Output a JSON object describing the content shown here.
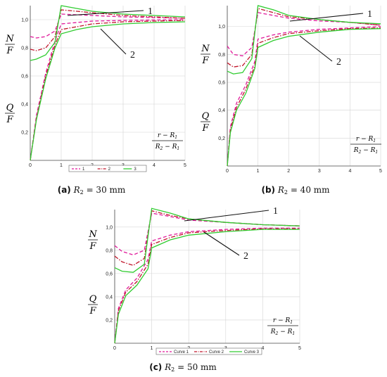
{
  "colors": {
    "series1": "#e0189a",
    "series2": "#c0152a",
    "series3": "#30cc30",
    "grid": "#d4d4d4"
  },
  "chart_data": [
    {
      "type": "line",
      "panel_label": "(a)",
      "caption_math": "R",
      "caption_sub": "2",
      "caption_value": " = 30  mm",
      "ylabel_top": {
        "num": "N",
        "den": "F"
      },
      "ylabel_bottom": {
        "num": "Q",
        "den": "F"
      },
      "xlabel": {
        "num": "r − R",
        "num_sub": "1",
        "den_a": "R",
        "den_a_sub": "2",
        "den_b": " − R",
        "den_b_sub": "1"
      },
      "xlim": [
        0,
        5
      ],
      "ylim": [
        0,
        1.1
      ],
      "xticks": [
        "0",
        "1",
        "2",
        "3",
        "4",
        "5"
      ],
      "yticks": [
        "0,2",
        "0,4",
        "0,6",
        "0,8",
        "1,0"
      ],
      "grid": true,
      "legend_placement": "bottom",
      "legend_labels": [
        "1",
        "2",
        "3"
      ],
      "annotations": [
        "1",
        "2"
      ],
      "series": [
        {
          "name": "1",
          "style": "dash",
          "N": {
            "x": [
              0,
              0.2,
              0.5,
              0.8,
              1.0,
              1.5,
              2,
              3,
              4,
              5
            ],
            "y": [
              0.88,
              0.87,
              0.88,
              0.92,
              1.04,
              1.035,
              1.03,
              1.02,
              1.015,
              1.01
            ]
          },
          "Q": {
            "x": [
              0,
              0.2,
              0.5,
              0.8,
              1.0,
              1.5,
              2,
              3,
              4,
              5
            ],
            "y": [
              0.0,
              0.32,
              0.62,
              0.85,
              0.97,
              0.98,
              0.99,
              0.995,
              0.998,
              1.0
            ]
          }
        },
        {
          "name": "2",
          "style": "dashdot",
          "N": {
            "x": [
              0,
              0.2,
              0.5,
              0.8,
              1.0,
              1.5,
              2,
              3,
              4,
              5
            ],
            "y": [
              0.79,
              0.78,
              0.8,
              0.88,
              1.07,
              1.06,
              1.05,
              1.03,
              1.02,
              1.01
            ]
          },
          "Q": {
            "x": [
              0,
              0.2,
              0.5,
              0.8,
              1.0,
              1.5,
              2,
              3,
              4,
              5
            ],
            "y": [
              0.0,
              0.3,
              0.6,
              0.82,
              0.93,
              0.95,
              0.97,
              0.985,
              0.99,
              0.995
            ]
          }
        },
        {
          "name": "3",
          "style": "solid",
          "N": {
            "x": [
              0,
              0.2,
              0.5,
              0.8,
              1.0,
              1.5,
              2,
              3,
              4,
              5
            ],
            "y": [
              0.71,
              0.72,
              0.75,
              0.84,
              1.1,
              1.08,
              1.06,
              1.04,
              1.03,
              1.02
            ]
          },
          "Q": {
            "x": [
              0,
              0.2,
              0.5,
              0.8,
              1.0,
              1.5,
              2,
              3,
              4,
              5
            ],
            "y": [
              0.0,
              0.29,
              0.58,
              0.8,
              0.9,
              0.93,
              0.95,
              0.97,
              0.98,
              0.985
            ]
          }
        }
      ]
    },
    {
      "type": "line",
      "panel_label": "(b)",
      "caption_math": "R",
      "caption_sub": "2",
      "caption_value": " = 40  mm",
      "ylabel_top": {
        "num": "N",
        "den": "F"
      },
      "ylabel_bottom": {
        "num": "Q",
        "den": "F"
      },
      "xlabel": {
        "num": "r − R",
        "num_sub": "1",
        "den_a": "R",
        "den_a_sub": "2",
        "den_b": " − R",
        "den_b_sub": "1"
      },
      "xlim": [
        0,
        5
      ],
      "ylim": [
        0,
        1.15
      ],
      "xticks": [
        "0",
        "1",
        "2",
        "3",
        "4",
        "5"
      ],
      "yticks": [
        "0,2",
        "0,4",
        "0,6",
        "0,8",
        "1,0"
      ],
      "grid": true,
      "legend_placement": "none",
      "legend_labels": [],
      "annotations": [
        "1",
        "2"
      ],
      "series": [
        {
          "name": "1",
          "style": "dash",
          "N": {
            "x": [
              0,
              0.2,
              0.5,
              0.8,
              1.0,
              1.5,
              2,
              3,
              4,
              5
            ],
            "y": [
              0.86,
              0.8,
              0.79,
              0.85,
              1.1,
              1.08,
              1.06,
              1.04,
              1.03,
              1.01
            ]
          },
          "Q": {
            "x": [
              0,
              0.1,
              0.3,
              0.6,
              0.9,
              1.0,
              1.5,
              2,
              3,
              4,
              5
            ],
            "y": [
              0.0,
              0.28,
              0.45,
              0.58,
              0.75,
              0.91,
              0.94,
              0.96,
              0.98,
              0.99,
              1.0
            ]
          }
        },
        {
          "name": "2",
          "style": "dashdot",
          "N": {
            "x": [
              0,
              0.2,
              0.5,
              0.8,
              1.0,
              1.5,
              2,
              3,
              4,
              5
            ],
            "y": [
              0.74,
              0.71,
              0.72,
              0.8,
              1.13,
              1.1,
              1.07,
              1.05,
              1.03,
              1.01
            ]
          },
          "Q": {
            "x": [
              0,
              0.1,
              0.3,
              0.6,
              0.9,
              1.0,
              1.5,
              2,
              3,
              4,
              5
            ],
            "y": [
              0.0,
              0.26,
              0.42,
              0.55,
              0.72,
              0.88,
              0.92,
              0.95,
              0.97,
              0.985,
              0.99
            ]
          }
        },
        {
          "name": "3",
          "style": "solid",
          "N": {
            "x": [
              0,
              0.2,
              0.5,
              0.8,
              1.0,
              1.5,
              2,
              3,
              4,
              5
            ],
            "y": [
              0.68,
              0.66,
              0.67,
              0.77,
              1.15,
              1.12,
              1.08,
              1.05,
              1.03,
              1.02
            ]
          },
          "Q": {
            "x": [
              0,
              0.1,
              0.3,
              0.6,
              0.9,
              1.0,
              1.5,
              2,
              3,
              4,
              5
            ],
            "y": [
              0.0,
              0.24,
              0.4,
              0.52,
              0.7,
              0.85,
              0.9,
              0.93,
              0.96,
              0.98,
              0.985
            ]
          }
        }
      ]
    },
    {
      "type": "line",
      "panel_label": "(c)",
      "caption_math": "R",
      "caption_sub": "2",
      "caption_value": " = 50  mm",
      "ylabel_top": {
        "num": "N",
        "den": "F"
      },
      "ylabel_bottom": {
        "num": "Q",
        "den": "F"
      },
      "xlabel": {
        "num": "r − R",
        "num_sub": "1",
        "den_a": "R",
        "den_a_sub": "2",
        "den_b": " − R",
        "den_b_sub": "1"
      },
      "xlim": [
        0,
        5
      ],
      "ylim": [
        0,
        1.15
      ],
      "xticks": [
        "0",
        "1",
        "2",
        "3",
        "4",
        "5"
      ],
      "yticks": [
        "0,2",
        "0,4",
        "0,6",
        "0,8",
        "1,0"
      ],
      "grid": true,
      "legend_placement": "bottom",
      "legend_labels": [
        "Curve 1",
        "Curve 2",
        "Curve 3"
      ],
      "annotations": [
        "1",
        "2"
      ],
      "series": [
        {
          "name": "Curve 1",
          "style": "dash",
          "N": {
            "x": [
              0,
              0.2,
              0.5,
              0.8,
              1.0,
              1.5,
              2,
              3,
              4,
              5
            ],
            "y": [
              0.84,
              0.79,
              0.76,
              0.8,
              1.12,
              1.09,
              1.06,
              1.04,
              1.02,
              1.01
            ]
          },
          "Q": {
            "x": [
              0,
              0.1,
              0.3,
              0.6,
              0.9,
              1.0,
              1.5,
              2,
              3,
              4,
              5
            ],
            "y": [
              0.0,
              0.3,
              0.46,
              0.56,
              0.72,
              0.88,
              0.93,
              0.96,
              0.98,
              0.99,
              0.99
            ]
          }
        },
        {
          "name": "Curve 2",
          "style": "dashdot",
          "N": {
            "x": [
              0,
              0.2,
              0.5,
              0.8,
              1.0,
              1.5,
              2,
              3,
              4,
              5
            ],
            "y": [
              0.75,
              0.7,
              0.67,
              0.73,
              1.14,
              1.1,
              1.07,
              1.04,
              1.02,
              1.01
            ]
          },
          "Q": {
            "x": [
              0,
              0.1,
              0.3,
              0.6,
              0.9,
              1.0,
              1.5,
              2,
              3,
              4,
              5
            ],
            "y": [
              0.0,
              0.28,
              0.44,
              0.53,
              0.68,
              0.85,
              0.91,
              0.95,
              0.97,
              0.985,
              0.985
            ]
          }
        },
        {
          "name": "Curve 3",
          "style": "solid",
          "N": {
            "x": [
              0,
              0.2,
              0.5,
              0.8,
              1.0,
              1.5,
              2,
              3,
              4,
              5
            ],
            "y": [
              0.65,
              0.62,
              0.61,
              0.68,
              1.16,
              1.12,
              1.07,
              1.04,
              1.02,
              1.01
            ]
          },
          "Q": {
            "x": [
              0,
              0.1,
              0.3,
              0.6,
              0.9,
              1.0,
              1.5,
              2,
              3,
              4,
              5
            ],
            "y": [
              0.0,
              0.25,
              0.41,
              0.5,
              0.64,
              0.82,
              0.89,
              0.93,
              0.96,
              0.98,
              0.98
            ]
          }
        }
      ]
    }
  ]
}
